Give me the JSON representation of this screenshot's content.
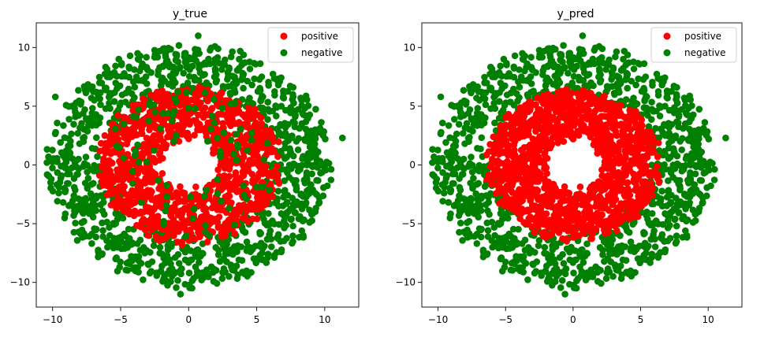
{
  "chart_data": [
    {
      "type": "scatter",
      "title": "y_true",
      "xlabel": "",
      "ylabel": "",
      "xlim": [
        -11.2,
        12.5
      ],
      "ylim": [
        -12.1,
        12.1
      ],
      "xticks": [
        -10,
        -5,
        0,
        5,
        10
      ],
      "yticks": [
        -10,
        -5,
        0,
        5,
        10
      ],
      "grid": false,
      "legend_position": "top-right",
      "series": [
        {
          "name": "negative",
          "color": "#008000",
          "distribution": {
            "kind": "ring",
            "r_min": 5.8,
            "r_max": 10.3,
            "count": 1200,
            "seed": 11
          }
        },
        {
          "name": "positive",
          "color": "#ff0000",
          "distribution": {
            "kind": "ring",
            "r_min": 2.2,
            "r_max": 6.6,
            "count": 1200,
            "seed": 23
          }
        },
        {
          "name": "negative",
          "color": "#008000",
          "distribution": {
            "kind": "scattered",
            "r_min": 2.3,
            "r_max": 6.3,
            "count": 90,
            "seed": 37
          }
        }
      ],
      "outliers": [
        {
          "x": 11.3,
          "y": 2.3
        },
        {
          "x": -9.8,
          "y": 5.8
        },
        {
          "x": -10.1,
          "y": -1.2
        },
        {
          "x": -0.6,
          "y": -11.0
        },
        {
          "x": 0.7,
          "y": 11.0
        }
      ]
    },
    {
      "type": "scatter",
      "title": "y_pred",
      "xlabel": "",
      "ylabel": "",
      "xlim": [
        -11.2,
        12.5
      ],
      "ylim": [
        -12.1,
        12.1
      ],
      "xticks": [
        -10,
        -5,
        0,
        5,
        10
      ],
      "yticks": [
        -10,
        -5,
        0,
        5,
        10
      ],
      "grid": false,
      "legend_position": "top-right",
      "series": [
        {
          "name": "negative",
          "color": "#008000",
          "distribution": {
            "kind": "ring",
            "r_min": 5.8,
            "r_max": 10.3,
            "count": 1200,
            "seed": 11
          }
        },
        {
          "name": "positive",
          "color": "#ff0000",
          "distribution": {
            "kind": "ring",
            "r_min": 2.2,
            "r_max": 6.3,
            "count": 1400,
            "seed": 23
          }
        }
      ],
      "outliers": [
        {
          "x": 11.3,
          "y": 2.3
        },
        {
          "x": -9.8,
          "y": 5.8
        },
        {
          "x": -10.1,
          "y": -1.2
        },
        {
          "x": -0.6,
          "y": -11.0
        },
        {
          "x": 0.7,
          "y": 11.0
        }
      ]
    }
  ],
  "legend": {
    "entries": [
      {
        "label": "positive",
        "color": "#ff0000"
      },
      {
        "label": "negative",
        "color": "#008000"
      }
    ]
  }
}
